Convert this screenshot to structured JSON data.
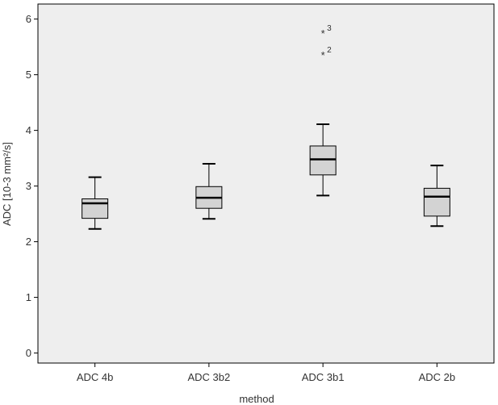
{
  "chart_data": {
    "type": "boxplot",
    "title": "",
    "xlabel": "method",
    "ylabel": "ADC [10-3 mm²/s]",
    "ylim": [
      -0.18,
      6.27
    ],
    "yticks": [
      "0",
      "1",
      "2",
      "3",
      "4",
      "5",
      "6"
    ],
    "grid": false,
    "legend": "none",
    "colors": {
      "plot_background": "#eeeeee",
      "box_fill": "#d3d3d3",
      "stroke": "#000000",
      "page_background": "#ffffff"
    },
    "categories": [
      "ADC 4b",
      "ADC 3b2",
      "ADC 3b1",
      "ADC 2b"
    ],
    "boxes": [
      {
        "category": "ADC 4b",
        "min": 2.23,
        "q1": 2.42,
        "median": 2.69,
        "q3": 2.77,
        "max": 3.16,
        "outliers": []
      },
      {
        "category": "ADC 3b2",
        "min": 2.41,
        "q1": 2.6,
        "median": 2.79,
        "q3": 2.99,
        "max": 3.4,
        "outliers": []
      },
      {
        "category": "ADC 3b1",
        "min": 2.83,
        "q1": 3.2,
        "median": 3.48,
        "q3": 3.72,
        "max": 4.11,
        "outliers": [
          {
            "value": 5.75,
            "label": "3"
          },
          {
            "value": 5.36,
            "label": "2"
          }
        ]
      },
      {
        "category": "ADC 2b",
        "min": 2.28,
        "q1": 2.46,
        "median": 2.81,
        "q3": 2.96,
        "max": 3.37,
        "outliers": []
      }
    ]
  }
}
